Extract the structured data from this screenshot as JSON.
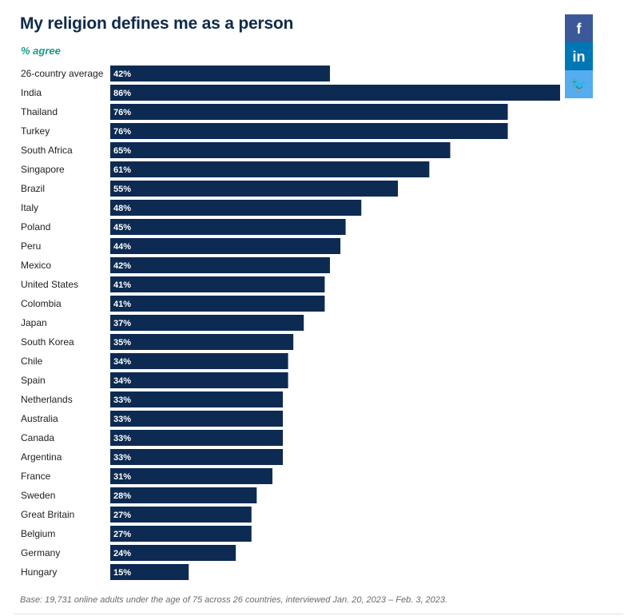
{
  "colors": {
    "bar": "#0d2b52",
    "title": "#0f2a4a",
    "subtitle": "#1a9a8a",
    "facebook": "#3b5998",
    "linkedin": "#0077b5",
    "twitter": "#55acee"
  },
  "social": [
    {
      "icon": "facebook-icon",
      "glyph": "f"
    },
    {
      "icon": "linkedin-icon",
      "glyph": "in"
    },
    {
      "icon": "twitter-icon",
      "glyph": "🐦"
    }
  ],
  "footnote": "Base: 19,731 online adults under the age of 75 across 26 countries, interviewed Jan. 20, 2023 – Feb. 3, 2023.",
  "chart_data": {
    "type": "bar",
    "orientation": "horizontal",
    "title": "My religion defines me as a person",
    "subtitle": "% agree",
    "xlim": [
      0,
      86
    ],
    "grid": false,
    "categories": [
      "26-country average",
      "India",
      "Thailand",
      "Turkey",
      "South Africa",
      "Singapore",
      "Brazil",
      "Italy",
      "Poland",
      "Peru",
      "Mexico",
      "United States",
      "Colombia",
      "Japan",
      "South Korea",
      "Chile",
      "Spain",
      "Netherlands",
      "Australia",
      "Canada",
      "Argentina",
      "France",
      "Sweden",
      "Great Britain",
      "Belgium",
      "Germany",
      "Hungary"
    ],
    "values": [
      42,
      86,
      76,
      76,
      65,
      61,
      55,
      48,
      45,
      44,
      42,
      41,
      41,
      37,
      35,
      34,
      34,
      33,
      33,
      33,
      33,
      31,
      28,
      27,
      27,
      24,
      15
    ],
    "value_suffix": "%"
  }
}
